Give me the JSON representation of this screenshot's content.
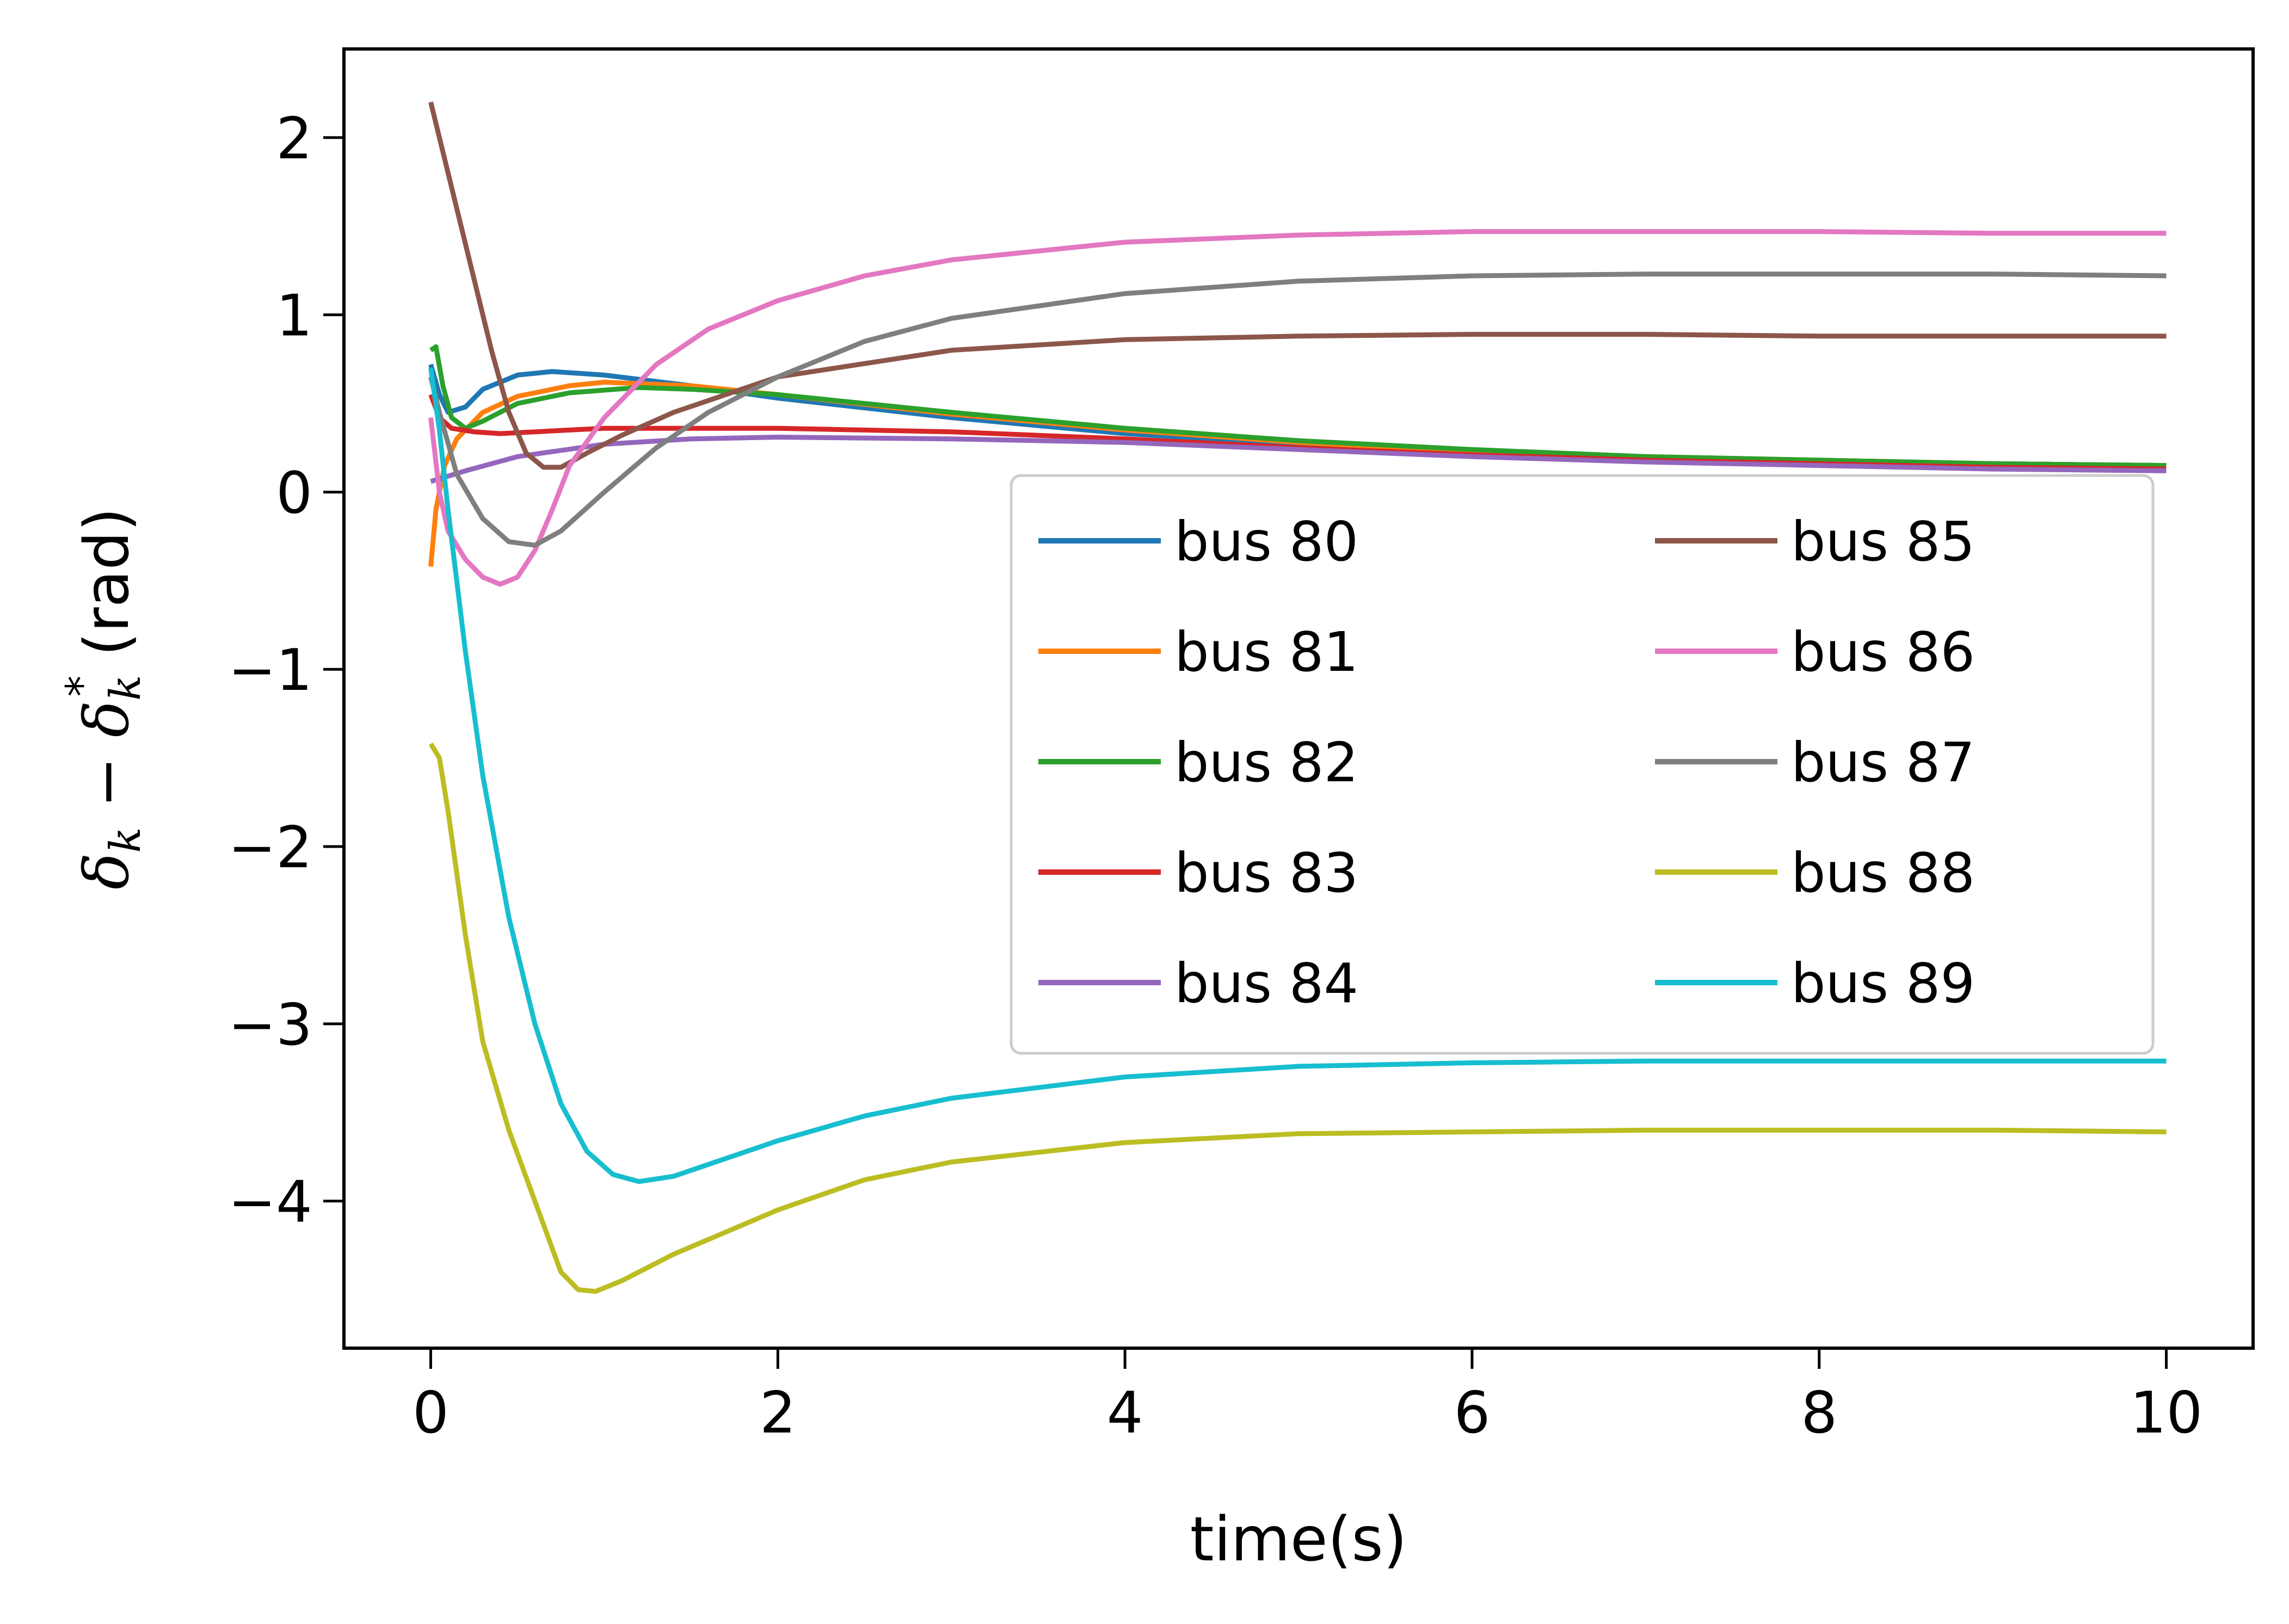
{
  "chart_data": {
    "type": "line",
    "xlabel": "time(s)",
    "ylabel": "δk − δk* (rad)",
    "ylabel_parts": {
      "a": "δ",
      "a_sub": "k",
      "minus": " − ",
      "b": "δ",
      "b_sub": "k",
      "b_sup": "*",
      "unit": "  (rad)"
    },
    "xlim": [
      -0.5,
      10.5
    ],
    "ylim": [
      -4.83,
      2.5
    ],
    "xticks": [
      0,
      2,
      4,
      6,
      8,
      10
    ],
    "yticks": [
      2,
      1,
      0,
      -1,
      -2,
      -3,
      -4
    ],
    "xtick_labels": [
      "0",
      "2",
      "4",
      "6",
      "8",
      "10"
    ],
    "ytick_labels": [
      "2",
      "1",
      "0",
      "−1",
      "−2",
      "−3",
      "−4"
    ],
    "grid": false,
    "legend": {
      "placement": "center-right",
      "columns": 2
    },
    "series": [
      {
        "name": "bus 80",
        "color": "#1f77b4",
        "points": [
          [
            0,
            0.72
          ],
          [
            0.05,
            0.55
          ],
          [
            0.1,
            0.45
          ],
          [
            0.2,
            0.48
          ],
          [
            0.3,
            0.58
          ],
          [
            0.5,
            0.66
          ],
          [
            0.7,
            0.68
          ],
          [
            1.0,
            0.66
          ],
          [
            1.5,
            0.6
          ],
          [
            2,
            0.53
          ],
          [
            3,
            0.42
          ],
          [
            4,
            0.33
          ],
          [
            5,
            0.27
          ],
          [
            6,
            0.22
          ],
          [
            7,
            0.19
          ],
          [
            8,
            0.17
          ],
          [
            9,
            0.16
          ],
          [
            10,
            0.15
          ]
        ]
      },
      {
        "name": "bus 81",
        "color": "#ff7f0e",
        "points": [
          [
            0,
            -0.42
          ],
          [
            0.03,
            -0.1
          ],
          [
            0.08,
            0.15
          ],
          [
            0.15,
            0.3
          ],
          [
            0.3,
            0.45
          ],
          [
            0.5,
            0.54
          ],
          [
            0.8,
            0.6
          ],
          [
            1.0,
            0.62
          ],
          [
            1.5,
            0.6
          ],
          [
            2,
            0.55
          ],
          [
            3,
            0.44
          ],
          [
            4,
            0.35
          ],
          [
            5,
            0.28
          ],
          [
            6,
            0.23
          ],
          [
            7,
            0.2
          ],
          [
            8,
            0.18
          ],
          [
            9,
            0.16
          ],
          [
            10,
            0.15
          ]
        ]
      },
      {
        "name": "bus 82",
        "color": "#2ca02c",
        "points": [
          [
            0,
            0.8
          ],
          [
            0.03,
            0.82
          ],
          [
            0.07,
            0.6
          ],
          [
            0.12,
            0.42
          ],
          [
            0.2,
            0.36
          ],
          [
            0.3,
            0.4
          ],
          [
            0.5,
            0.5
          ],
          [
            0.8,
            0.56
          ],
          [
            1.2,
            0.59
          ],
          [
            1.5,
            0.58
          ],
          [
            2,
            0.55
          ],
          [
            3,
            0.45
          ],
          [
            4,
            0.36
          ],
          [
            5,
            0.29
          ],
          [
            6,
            0.24
          ],
          [
            7,
            0.2
          ],
          [
            8,
            0.18
          ],
          [
            9,
            0.16
          ],
          [
            10,
            0.15
          ]
        ]
      },
      {
        "name": "bus 83",
        "color": "#d62728",
        "points": [
          [
            0,
            0.55
          ],
          [
            0.05,
            0.42
          ],
          [
            0.12,
            0.36
          ],
          [
            0.25,
            0.34
          ],
          [
            0.4,
            0.33
          ],
          [
            0.6,
            0.34
          ],
          [
            0.8,
            0.35
          ],
          [
            1.0,
            0.36
          ],
          [
            1.5,
            0.36
          ],
          [
            2,
            0.36
          ],
          [
            3,
            0.34
          ],
          [
            4,
            0.3
          ],
          [
            5,
            0.25
          ],
          [
            6,
            0.21
          ],
          [
            7,
            0.18
          ],
          [
            8,
            0.16
          ],
          [
            9,
            0.14
          ],
          [
            10,
            0.13
          ]
        ]
      },
      {
        "name": "bus 84",
        "color": "#9467bd",
        "points": [
          [
            0,
            0.06
          ],
          [
            0.2,
            0.12
          ],
          [
            0.5,
            0.2
          ],
          [
            1.0,
            0.27
          ],
          [
            1.5,
            0.3
          ],
          [
            2,
            0.31
          ],
          [
            3,
            0.3
          ],
          [
            4,
            0.28
          ],
          [
            5,
            0.24
          ],
          [
            6,
            0.2
          ],
          [
            7,
            0.17
          ],
          [
            8,
            0.15
          ],
          [
            9,
            0.13
          ],
          [
            10,
            0.12
          ]
        ]
      },
      {
        "name": "bus 85",
        "color": "#8c564b",
        "points": [
          [
            0,
            2.2
          ],
          [
            0.05,
            2.0
          ],
          [
            0.15,
            1.6
          ],
          [
            0.25,
            1.2
          ],
          [
            0.35,
            0.8
          ],
          [
            0.45,
            0.45
          ],
          [
            0.55,
            0.22
          ],
          [
            0.65,
            0.14
          ],
          [
            0.75,
            0.14
          ],
          [
            0.9,
            0.22
          ],
          [
            1.1,
            0.32
          ],
          [
            1.4,
            0.45
          ],
          [
            2,
            0.65
          ],
          [
            3,
            0.8
          ],
          [
            4,
            0.86
          ],
          [
            5,
            0.88
          ],
          [
            6,
            0.89
          ],
          [
            7,
            0.89
          ],
          [
            8,
            0.88
          ],
          [
            9,
            0.88
          ],
          [
            10,
            0.88
          ]
        ]
      },
      {
        "name": "bus 86",
        "color": "#e377c2",
        "points": [
          [
            0,
            0.42
          ],
          [
            0.05,
            0.0
          ],
          [
            0.1,
            -0.22
          ],
          [
            0.2,
            -0.38
          ],
          [
            0.3,
            -0.48
          ],
          [
            0.4,
            -0.52
          ],
          [
            0.5,
            -0.48
          ],
          [
            0.6,
            -0.33
          ],
          [
            0.7,
            -0.1
          ],
          [
            0.8,
            0.15
          ],
          [
            1.0,
            0.42
          ],
          [
            1.3,
            0.72
          ],
          [
            1.6,
            0.92
          ],
          [
            2,
            1.08
          ],
          [
            2.5,
            1.22
          ],
          [
            3,
            1.31
          ],
          [
            4,
            1.41
          ],
          [
            5,
            1.45
          ],
          [
            6,
            1.47
          ],
          [
            7,
            1.47
          ],
          [
            8,
            1.47
          ],
          [
            9,
            1.46
          ],
          [
            10,
            1.46
          ]
        ]
      },
      {
        "name": "bus 87",
        "color": "#7f7f7f",
        "points": [
          [
            0,
            0.65
          ],
          [
            0.05,
            0.45
          ],
          [
            0.15,
            0.1
          ],
          [
            0.3,
            -0.15
          ],
          [
            0.45,
            -0.28
          ],
          [
            0.6,
            -0.3
          ],
          [
            0.75,
            -0.22
          ],
          [
            1.0,
            0.0
          ],
          [
            1.3,
            0.25
          ],
          [
            1.6,
            0.45
          ],
          [
            2,
            0.65
          ],
          [
            2.5,
            0.85
          ],
          [
            3,
            0.98
          ],
          [
            4,
            1.12
          ],
          [
            5,
            1.19
          ],
          [
            6,
            1.22
          ],
          [
            7,
            1.23
          ],
          [
            8,
            1.23
          ],
          [
            9,
            1.23
          ],
          [
            10,
            1.22
          ]
        ]
      },
      {
        "name": "bus 88",
        "color": "#bcbd22",
        "points": [
          [
            0,
            -1.42
          ],
          [
            0.05,
            -1.5
          ],
          [
            0.1,
            -1.8
          ],
          [
            0.2,
            -2.5
          ],
          [
            0.3,
            -3.1
          ],
          [
            0.45,
            -3.6
          ],
          [
            0.6,
            -4.0
          ],
          [
            0.75,
            -4.4
          ],
          [
            0.85,
            -4.5
          ],
          [
            0.95,
            -4.51
          ],
          [
            1.1,
            -4.45
          ],
          [
            1.4,
            -4.3
          ],
          [
            2,
            -4.05
          ],
          [
            2.5,
            -3.88
          ],
          [
            3,
            -3.78
          ],
          [
            4,
            -3.67
          ],
          [
            5,
            -3.62
          ],
          [
            6,
            -3.61
          ],
          [
            7,
            -3.6
          ],
          [
            8,
            -3.6
          ],
          [
            9,
            -3.6
          ],
          [
            10,
            -3.61
          ]
        ]
      },
      {
        "name": "bus 89",
        "color": "#17becf",
        "points": [
          [
            0,
            0.7
          ],
          [
            0.05,
            0.35
          ],
          [
            0.1,
            -0.1
          ],
          [
            0.2,
            -0.9
          ],
          [
            0.3,
            -1.6
          ],
          [
            0.45,
            -2.4
          ],
          [
            0.6,
            -3.0
          ],
          [
            0.75,
            -3.45
          ],
          [
            0.9,
            -3.72
          ],
          [
            1.05,
            -3.85
          ],
          [
            1.2,
            -3.89
          ],
          [
            1.4,
            -3.86
          ],
          [
            1.7,
            -3.76
          ],
          [
            2,
            -3.66
          ],
          [
            2.5,
            -3.52
          ],
          [
            3,
            -3.42
          ],
          [
            4,
            -3.3
          ],
          [
            5,
            -3.24
          ],
          [
            6,
            -3.22
          ],
          [
            7,
            -3.21
          ],
          [
            8,
            -3.21
          ],
          [
            9,
            -3.21
          ],
          [
            10,
            -3.21
          ]
        ]
      }
    ]
  }
}
